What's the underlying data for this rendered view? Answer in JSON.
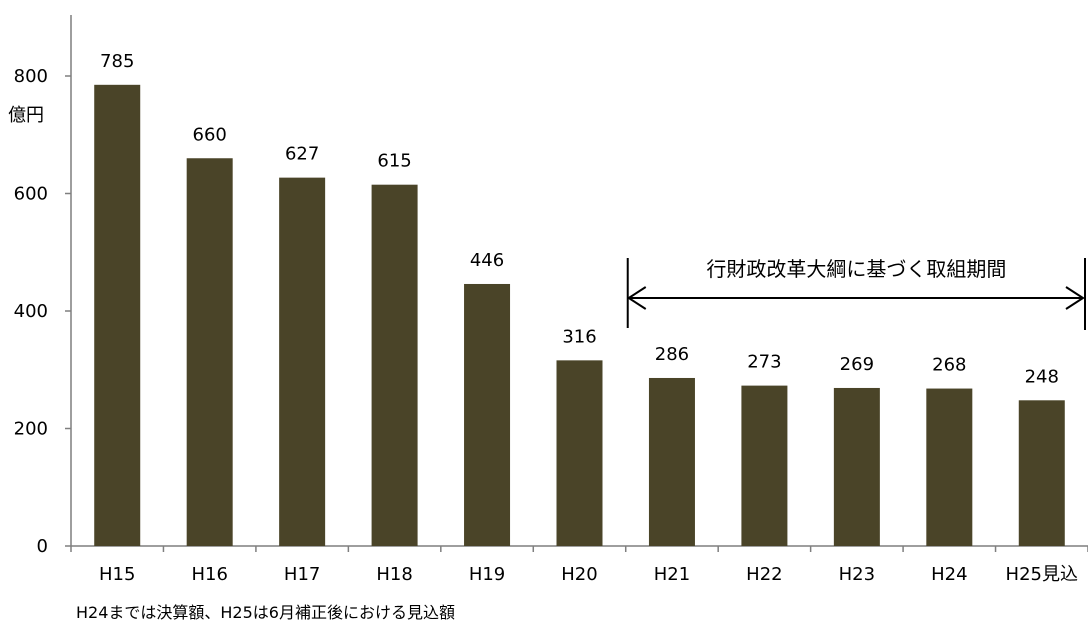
{
  "chart_data": {
    "type": "bar",
    "categories": [
      "H15",
      "H16",
      "H17",
      "H18",
      "H19",
      "H20",
      "H21",
      "H22",
      "H23",
      "H24",
      "H25見込"
    ],
    "values": [
      785,
      660,
      627,
      615,
      446,
      316,
      286,
      273,
      269,
      268,
      248
    ],
    "data_labels": [
      "785",
      "660",
      "627",
      "615",
      "446",
      "316",
      "286",
      "273",
      "269",
      "268",
      "248"
    ],
    "title": "",
    "xlabel": "",
    "ylabel": "",
    "unit_label": "億円",
    "ylim": [
      0,
      900
    ],
    "yticks": [
      0,
      200,
      400,
      600,
      800
    ],
    "grid": false,
    "bar_color": "#4a4428",
    "note": "H24までは決算額、H25は6月補正後における見込額",
    "annotation": {
      "text": "行財政改革大綱に基づく取組期間",
      "from_category": "H21",
      "to_category": "H25見込"
    }
  }
}
